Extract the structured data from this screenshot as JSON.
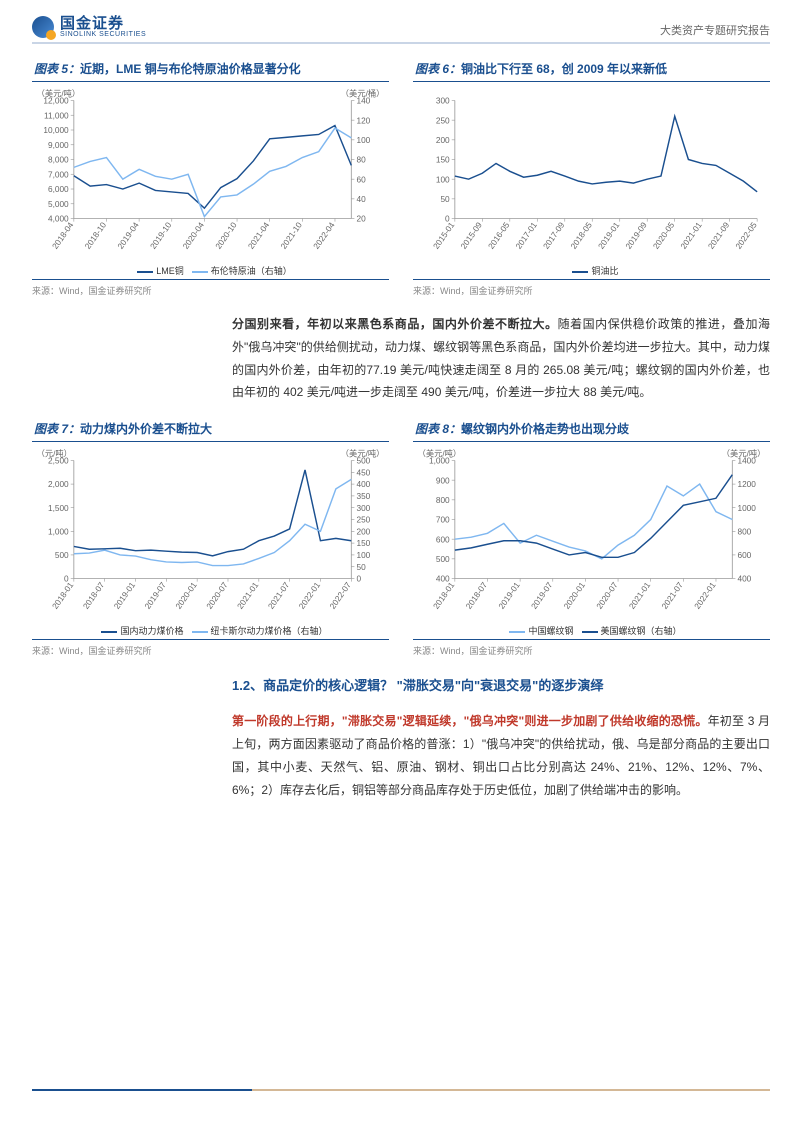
{
  "header": {
    "logo_cn": "国金证券",
    "logo_en": "SINOLINK SECURITIES",
    "doc_title": "大类资产专题研究报告"
  },
  "charts": [
    {
      "id": "c5",
      "title_prefix": "图表 5：",
      "title": "近期，LME 铜与布伦特原油价格显著分化",
      "y1_label": "（美元/吨）",
      "y2_label": "（美元/桶）",
      "y1_ticks": [
        4000,
        5000,
        6000,
        7000,
        8000,
        9000,
        10000,
        11000,
        12000
      ],
      "y2_ticks": [
        20,
        40,
        60,
        80,
        100,
        120,
        140
      ],
      "x_ticks": [
        "2018-04",
        "2018-07",
        "2018-10",
        "2019-01",
        "2019-04",
        "2019-07",
        "2019-10",
        "2020-01",
        "2020-04",
        "2020-07",
        "2020-10",
        "2021-01",
        "2021-04",
        "2021-07",
        "2021-10",
        "2022-01",
        "2022-04",
        "2022-07"
      ],
      "x_show": [
        0,
        2,
        4,
        6,
        8,
        10,
        12,
        14,
        16
      ],
      "series": [
        {
          "name": "LME铜",
          "color": "#1a4f8f",
          "width": 1.4,
          "axis": "y1",
          "data": [
            6900,
            6200,
            6300,
            6000,
            6400,
            5900,
            5800,
            5700,
            4700,
            6100,
            6700,
            7900,
            9400,
            9500,
            9600,
            9700,
            10300,
            7600
          ]
        },
        {
          "name": "布伦特原油（右轴）",
          "color": "#7fb7f0",
          "width": 1.4,
          "axis": "y2",
          "data": [
            72,
            78,
            82,
            60,
            70,
            63,
            60,
            65,
            22,
            42,
            44,
            55,
            68,
            73,
            82,
            88,
            112,
            102
          ]
        }
      ],
      "legend": [
        {
          "name": "LME铜",
          "color": "#1a4f8f"
        },
        {
          "name": "布伦特原油（右轴）",
          "color": "#7fb7f0"
        }
      ],
      "source": "来源：Wind，国金证券研究所"
    },
    {
      "id": "c6",
      "title_prefix": "图表 6：",
      "title": "铜油比下行至 68，创 2009 年以来新低",
      "y1_label": "",
      "y1_ticks": [
        0,
        50,
        100,
        150,
        200,
        250,
        300
      ],
      "x_ticks": [
        "2015-01",
        "2015-05",
        "2015-09",
        "2016-01",
        "2016-05",
        "2016-09",
        "2017-01",
        "2017-05",
        "2017-09",
        "2018-01",
        "2018-05",
        "2018-09",
        "2019-01",
        "2019-05",
        "2019-09",
        "2020-01",
        "2020-05",
        "2020-09",
        "2021-01",
        "2021-05",
        "2021-09",
        "2022-01",
        "2022-05"
      ],
      "x_show": [
        0,
        2,
        4,
        6,
        8,
        10,
        12,
        14,
        16,
        18,
        20,
        22
      ],
      "series": [
        {
          "name": "铜油比",
          "color": "#1a4f8f",
          "width": 1.4,
          "axis": "y1",
          "data": [
            108,
            100,
            115,
            140,
            120,
            105,
            110,
            120,
            108,
            95,
            88,
            92,
            95,
            90,
            100,
            108,
            260,
            150,
            140,
            135,
            115,
            95,
            68
          ]
        }
      ],
      "legend": [
        {
          "name": "铜油比",
          "color": "#1a4f8f"
        }
      ],
      "source": "来源：Wind，国金证券研究所"
    },
    {
      "id": "c7",
      "title_prefix": "图表 7：",
      "title": "动力煤内外价差不断拉大",
      "y1_label": "（元/吨）",
      "y2_label": "（美元/吨）",
      "y1_ticks": [
        0,
        500,
        1000,
        1500,
        2000,
        2500
      ],
      "y2_ticks": [
        0,
        50,
        100,
        150,
        200,
        250,
        300,
        350,
        400,
        450,
        500
      ],
      "x_ticks": [
        "2018-01",
        "2018-04",
        "2018-07",
        "2018-10",
        "2019-01",
        "2019-04",
        "2019-07",
        "2019-10",
        "2020-01",
        "2020-04",
        "2020-07",
        "2020-10",
        "2021-01",
        "2021-04",
        "2021-07",
        "2021-10",
        "2022-01",
        "2022-04",
        "2022-07"
      ],
      "x_show": [
        0,
        2,
        4,
        6,
        8,
        10,
        12,
        14,
        16,
        18
      ],
      "series": [
        {
          "name": "国内动力煤价格",
          "color": "#1a4f8f",
          "width": 1.4,
          "axis": "y1",
          "data": [
            680,
            620,
            630,
            640,
            590,
            600,
            580,
            560,
            550,
            480,
            570,
            620,
            800,
            900,
            1050,
            2300,
            800,
            850,
            800
          ]
        },
        {
          "name": "纽卡斯尔动力煤价格（右轴）",
          "color": "#7fb7f0",
          "width": 1.4,
          "axis": "y2",
          "data": [
            105,
            108,
            120,
            100,
            95,
            80,
            70,
            68,
            70,
            55,
            55,
            62,
            85,
            110,
            160,
            230,
            200,
            380,
            420
          ]
        }
      ],
      "legend": [
        {
          "name": "国内动力煤价格",
          "color": "#1a4f8f"
        },
        {
          "name": "纽卡斯尔动力煤价格（右轴）",
          "color": "#7fb7f0"
        }
      ],
      "source": "来源：Wind，国金证券研究所"
    },
    {
      "id": "c8",
      "title_prefix": "图表 8：",
      "title": "螺纹钢内外价格走势也出现分歧",
      "y1_label": "（美元/吨）",
      "y2_label": "（美元/吨）",
      "y1_ticks": [
        400,
        500,
        600,
        700,
        800,
        900,
        1000
      ],
      "y2_ticks": [
        400,
        600,
        800,
        1000,
        1200,
        1400
      ],
      "x_ticks": [
        "2018-01",
        "2018-04",
        "2018-07",
        "2018-10",
        "2019-01",
        "2019-04",
        "2019-07",
        "2019-10",
        "2020-01",
        "2020-04",
        "2020-07",
        "2020-10",
        "2021-01",
        "2021-04",
        "2021-07",
        "2021-10",
        "2022-01",
        "2022-04"
      ],
      "x_show": [
        0,
        2,
        4,
        6,
        8,
        10,
        12,
        14,
        16
      ],
      "series": [
        {
          "name": "中国螺纹钢",
          "color": "#7fb7f0",
          "width": 1.4,
          "axis": "y1",
          "data": [
            600,
            610,
            630,
            680,
            580,
            620,
            590,
            560,
            540,
            500,
            570,
            620,
            700,
            870,
            820,
            880,
            740,
            700
          ]
        },
        {
          "name": "美国螺纹钢（右轴）",
          "color": "#1a4f8f",
          "width": 1.4,
          "axis": "y2",
          "data": [
            640,
            660,
            690,
            720,
            720,
            700,
            650,
            600,
            620,
            580,
            580,
            620,
            740,
            880,
            1020,
            1050,
            1080,
            1280
          ]
        }
      ],
      "legend": [
        {
          "name": "中国螺纹钢",
          "color": "#7fb7f0"
        },
        {
          "name": "美国螺纹钢（右轴）",
          "color": "#1a4f8f"
        }
      ],
      "source": "来源：Wind，国金证券研究所"
    }
  ],
  "para1_bold": "分国别来看，年初以来黑色系商品，国内外价差不断拉大。",
  "para1_body": "随着国内保供稳价政策的推进，叠加海外\"俄乌冲突\"的供给侧扰动，动力煤、螺纹钢等黑色系商品，国内外价差均进一步拉大。其中，动力煤的国内外价差，由年初的77.19 美元/吨快速走阔至 8 月的 265.08 美元/吨；螺纹钢的国内外价差，也由年初的 402 美元/吨进一步走阔至 490 美元/吨，价差进一步拉大 88 美元/吨。",
  "section": "1.2、商品定价的核心逻辑？ \"滞胀交易\"向\"衰退交易\"的逐步演绎",
  "para2_red": "第一阶段的上行期，\"滞胀交易\"逻辑延续，\"俄乌冲突\"则进一步加剧了供给收缩的恐慌。",
  "para2_body": "年初至 3 月上旬，两方面因素驱动了商品价格的普涨：1）\"俄乌冲突\"的供给扰动，俄、乌是部分商品的主要出口国，其中小麦、天然气、铝、原油、钢材、铜出口占比分别高达 24%、21%、12%、12%、7%、6%；2）库存去化后，铜铝等部分商品库存处于历史低位，加剧了供给端冲击的影响。",
  "colors": {
    "primary": "#1a4f8f",
    "secondary": "#7fb7f0",
    "grid": "#e8e8e8",
    "axis": "#999999"
  }
}
